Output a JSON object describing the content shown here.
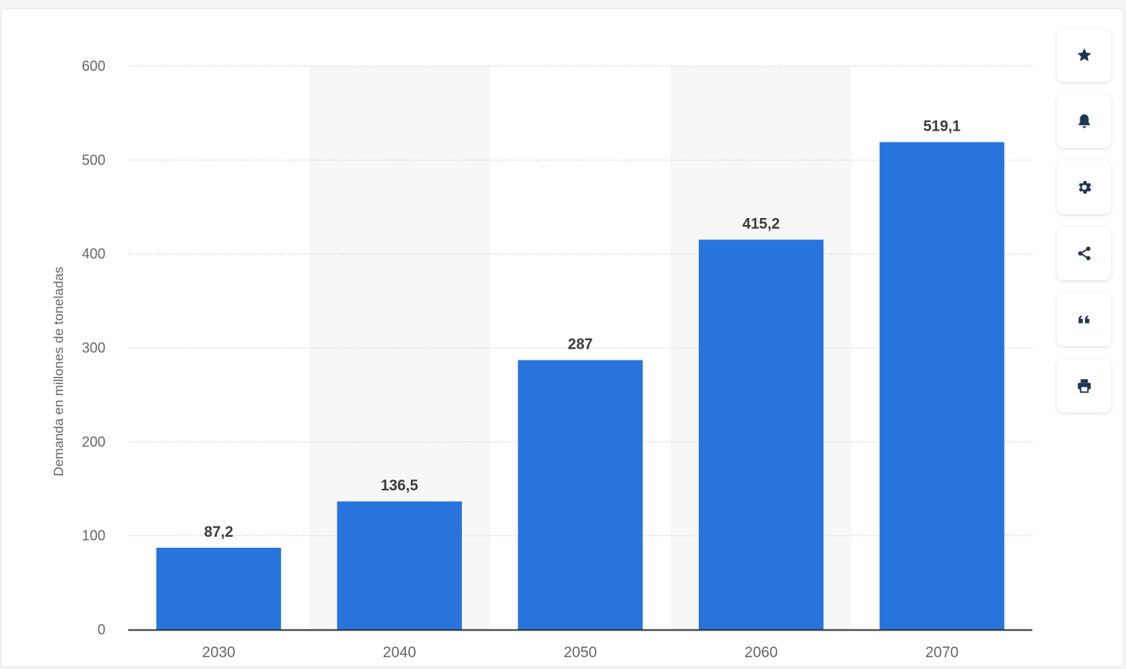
{
  "chart_data": {
    "type": "bar",
    "ylabel": "Demanda en millones de toneladas",
    "categories": [
      "2030",
      "2040",
      "2050",
      "2060",
      "2070"
    ],
    "values": [
      87.2,
      136.5,
      287,
      415.2,
      519.1
    ],
    "value_labels": [
      "87,2",
      "136,5",
      "287",
      "415,2",
      "519,1"
    ],
    "ylim": [
      0,
      600
    ],
    "yticks": [
      "0",
      "100",
      "200",
      "300",
      "400",
      "500",
      "600"
    ],
    "grid": true,
    "legend": "none",
    "colors": {
      "bar": "#2874dd",
      "band": "#f7f7f7",
      "grid": "#cccccc",
      "axis": "#333333",
      "tick_text": "#666666",
      "value_text": "#3a3a3a"
    }
  },
  "toolbar": {
    "buttons": [
      {
        "name": "favorite-button",
        "icon": "star-icon"
      },
      {
        "name": "notification-button",
        "icon": "bell-icon"
      },
      {
        "name": "settings-button",
        "icon": "gear-icon"
      },
      {
        "name": "share-button",
        "icon": "share-icon"
      },
      {
        "name": "cite-button",
        "icon": "quote-icon"
      },
      {
        "name": "print-button",
        "icon": "printer-icon"
      }
    ],
    "icon_color": "#1f3653"
  }
}
